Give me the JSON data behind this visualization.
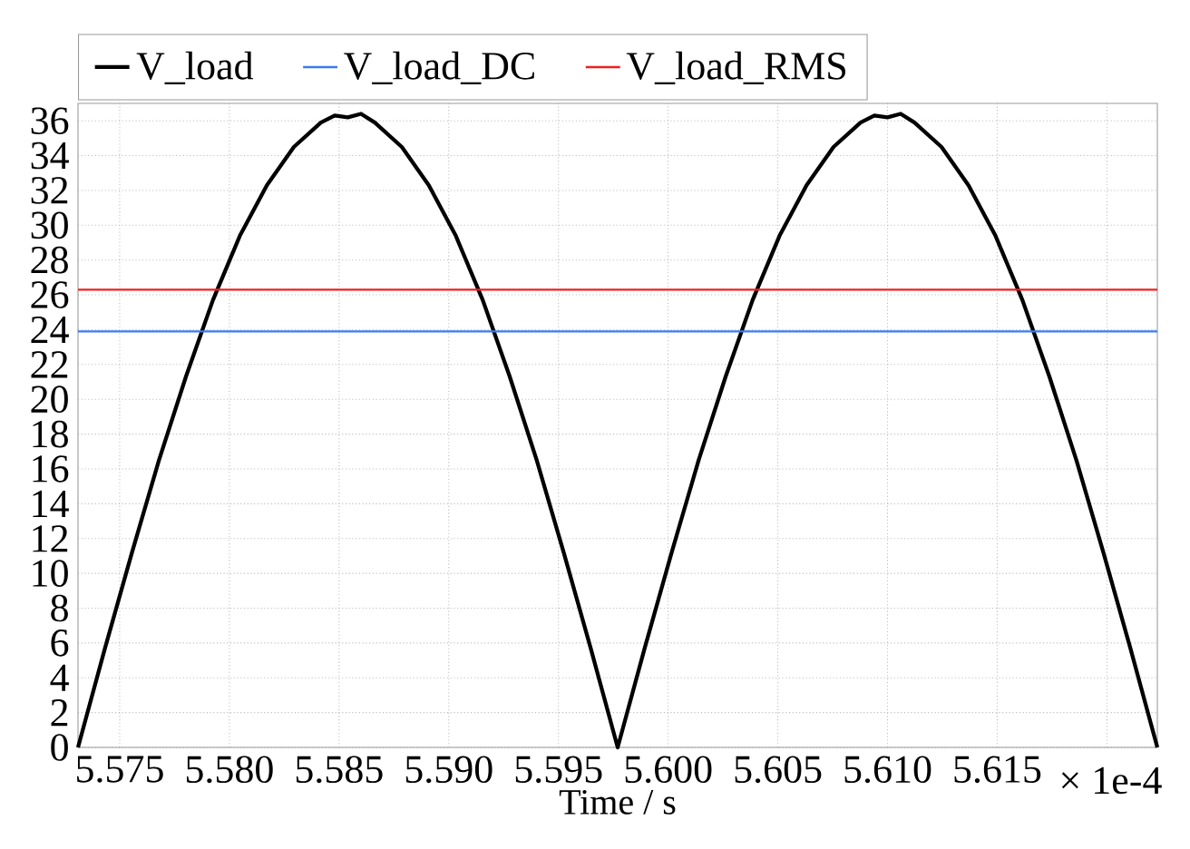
{
  "chart_data": {
    "type": "line",
    "xlabel": "Time / s",
    "annotations": [
      "× 1e-4"
    ],
    "xlim": [
      5.5731,
      5.6223
    ],
    "ylim": [
      0,
      37
    ],
    "xticks": [
      5.575,
      {
        "value": 5.58,
        "label": "5.580"
      },
      5.585,
      {
        "value": 5.59,
        "label": "5.590"
      },
      5.595,
      {
        "value": 5.6,
        "label": "5.600"
      },
      5.605,
      {
        "value": 5.61,
        "label": "5.610"
      },
      5.615,
      {
        "value": 5.62,
        "label": null
      }
    ],
    "yticks": [
      0,
      2,
      4,
      6,
      8,
      10,
      12,
      14,
      16,
      18,
      20,
      22,
      24,
      26,
      28,
      30,
      32,
      34,
      36
    ],
    "grid": true,
    "legend": "top",
    "series": [
      {
        "name": "V_load",
        "color": "#000000",
        "x": [
          5.5731,
          5.57433,
          5.57556,
          5.57679,
          5.57802,
          5.57925,
          5.58048,
          5.58171,
          5.58294,
          5.58417,
          5.5848,
          5.5854,
          5.586,
          5.58663,
          5.58786,
          5.58909,
          5.59032,
          5.59155,
          5.59278,
          5.59401,
          5.59524,
          5.59647,
          5.5977,
          5.59893,
          5.60016,
          5.60139,
          5.60262,
          5.60385,
          5.60508,
          5.60631,
          5.60754,
          5.60877,
          5.6094,
          5.61,
          5.6106,
          5.61123,
          5.61246,
          5.61369,
          5.61492,
          5.61615,
          5.61738,
          5.61861,
          5.61984,
          5.62107,
          5.6223
        ],
        "values": [
          0,
          5.7,
          11.2,
          16.5,
          21.3,
          25.7,
          29.4,
          32.3,
          34.5,
          35.9,
          36.3,
          36.2,
          36.4,
          35.9,
          34.5,
          32.3,
          29.4,
          25.7,
          21.3,
          16.5,
          11.2,
          5.7,
          0,
          5.7,
          11.2,
          16.5,
          21.3,
          25.7,
          29.4,
          32.3,
          34.5,
          35.9,
          36.3,
          36.2,
          36.4,
          35.9,
          34.5,
          32.3,
          29.4,
          25.7,
          21.3,
          16.5,
          11.2,
          5.7,
          0
        ]
      },
      {
        "name": "V_load_DC",
        "color": "#3a7bef",
        "x": [
          5.5731,
          5.6223
        ],
        "values": [
          23.9,
          23.9
        ]
      },
      {
        "name": "V_load_RMS",
        "color": "#ee2020",
        "x": [
          5.5731,
          5.6223
        ],
        "values": [
          26.3,
          26.3
        ]
      }
    ]
  }
}
